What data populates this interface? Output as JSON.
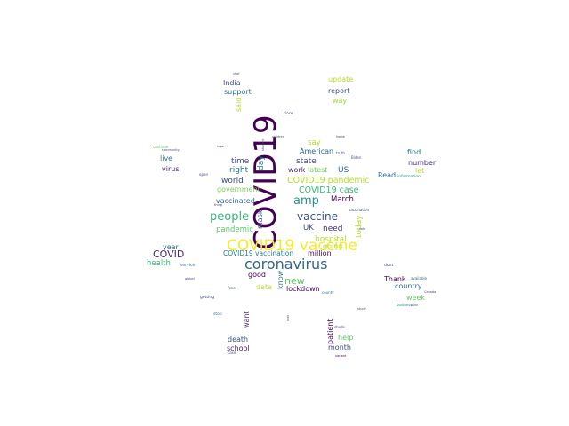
{
  "words": [
    {
      "text": "COVID19",
      "color": "#440154",
      "vertical": true
    },
    {
      "text": "COVID19 vaccine",
      "color": "#fde725",
      "vertical": false
    },
    {
      "text": "coronavirus",
      "color": "#31688e",
      "vertical": false
    },
    {
      "text": "people",
      "color": "#35b779",
      "vertical": false
    },
    {
      "text": "amp",
      "color": "#21918c",
      "vertical": false
    },
    {
      "text": "vaccine",
      "color": "#3b528b",
      "vertical": false
    },
    {
      "text": "new",
      "color": "#5ec962",
      "vertical": false
    },
    {
      "text": "COVID",
      "color": "#482878",
      "vertical": false
    },
    {
      "text": "COVID19 pandemic",
      "color": "#b5de2b",
      "vertical": false
    },
    {
      "text": "COVID19 case",
      "color": "#35b779",
      "vertical": false
    },
    {
      "text": "day",
      "color": "#26828e",
      "vertical": true
    },
    {
      "text": "world",
      "color": "#3e4989",
      "vertical": false
    },
    {
      "text": "time",
      "color": "#404688",
      "vertical": false
    },
    {
      "text": "right",
      "color": "#2a788e",
      "vertical": false
    },
    {
      "text": "state",
      "color": "#414487",
      "vertical": false
    },
    {
      "text": "US",
      "color": "#31688e",
      "vertical": false
    },
    {
      "text": "UK",
      "color": "#3e4989",
      "vertical": false
    },
    {
      "text": "work",
      "color": "#482878",
      "vertical": false
    },
    {
      "text": "latest",
      "color": "#6ece58",
      "vertical": false
    },
    {
      "text": "American",
      "color": "#31688e",
      "vertical": false
    },
    {
      "text": "say",
      "color": "#b5de2b",
      "vertical": false
    },
    {
      "text": "March",
      "color": "#440154",
      "vertical": false
    },
    {
      "text": "need",
      "color": "#472d7b",
      "vertical": false
    },
    {
      "text": "today",
      "color": "#addc30",
      "vertical": true
    },
    {
      "text": "hospital",
      "color": "#b5de2b",
      "vertical": false
    },
    {
      "text": "mask",
      "color": "#3e4989",
      "vertical": true
    },
    {
      "text": "vaccinated",
      "color": "#31688e",
      "vertical": false
    },
    {
      "text": "pandemic",
      "color": "#5ec962",
      "vertical": false
    },
    {
      "text": "government",
      "color": "#7ad151",
      "vertical": false
    },
    {
      "text": "live",
      "color": "#2c728e",
      "vertical": false
    },
    {
      "text": "virus",
      "color": "#482878",
      "vertical": false
    },
    {
      "text": "year",
      "color": "#31688e",
      "vertical": false
    },
    {
      "text": "health",
      "color": "#35b779",
      "vertical": false
    },
    {
      "text": "COVID19 vaccination",
      "color": "#277f8e",
      "vertical": false
    },
    {
      "text": "million",
      "color": "#440154",
      "vertical": false
    },
    {
      "text": "good",
      "color": "#440154",
      "vertical": false
    },
    {
      "text": "data",
      "color": "#b5de2b",
      "vertical": false
    },
    {
      "text": "know",
      "color": "#2a788e",
      "vertical": true
    },
    {
      "text": "lockdown",
      "color": "#440154",
      "vertical": false
    },
    {
      "text": "going",
      "color": "#addc30",
      "vertical": false
    },
    {
      "text": "update",
      "color": "#b5de2b",
      "vertical": false
    },
    {
      "text": "India",
      "color": "#3e4989",
      "vertical": false
    },
    {
      "text": "support",
      "color": "#2c728e",
      "vertical": false
    },
    {
      "text": "said",
      "color": "#b5de2b",
      "vertical": true
    },
    {
      "text": "report",
      "color": "#3b528b",
      "vertical": false
    },
    {
      "text": "way",
      "color": "#a0da39",
      "vertical": false
    },
    {
      "text": "find",
      "color": "#2c728e",
      "vertical": false
    },
    {
      "text": "number",
      "color": "#472d7b",
      "vertical": false
    },
    {
      "text": "let",
      "color": "#b5de2b",
      "vertical": false
    },
    {
      "text": "Read",
      "color": "#31688e",
      "vertical": false
    },
    {
      "text": "Thank",
      "color": "#440154",
      "vertical": false
    },
    {
      "text": "country",
      "color": "#31688e",
      "vertical": false
    },
    {
      "text": "week",
      "color": "#5ec962",
      "vertical": false
    },
    {
      "text": "want",
      "color": "#482878",
      "vertical": true
    },
    {
      "text": "patient",
      "color": "#440154",
      "vertical": true
    },
    {
      "text": "help",
      "color": "#5ec962",
      "vertical": false
    },
    {
      "text": "month",
      "color": "#3e4989",
      "vertical": false
    },
    {
      "text": "death",
      "color": "#3b528b",
      "vertical": false
    },
    {
      "text": "school",
      "color": "#481a6c",
      "vertical": false
    },
    {
      "text": "continue",
      "color": "#5ec962",
      "vertical": false
    },
    {
      "text": "service",
      "color": "#31688e",
      "vertical": false
    },
    {
      "text": "information",
      "color": "#21918c",
      "vertical": false
    },
    {
      "text": "dont",
      "color": "#3e4989",
      "vertical": false
    },
    {
      "text": "getting",
      "color": "#3e4989",
      "vertical": false
    },
    {
      "text": "free",
      "color": "#3b528b",
      "vertical": false
    },
    {
      "text": "stop",
      "color": "#2a788e",
      "vertical": false
    },
    {
      "text": "available",
      "color": "#31688e",
      "vertical": false
    },
    {
      "text": "business",
      "color": "#21918c",
      "vertical": false
    },
    {
      "text": "check",
      "color": "#3e4989",
      "vertical": false
    },
    {
      "text": "county",
      "color": "#2c728e",
      "vertical": false
    },
    {
      "text": "vaccination",
      "color": "#3e4989",
      "vertical": false
    },
    {
      "text": "children",
      "color": "#3e4989",
      "vertical": false
    },
    {
      "text": "close",
      "color": "#3b528b",
      "vertical": false
    },
    {
      "text": "Biden",
      "color": "#3b528b",
      "vertical": false
    },
    {
      "text": "truth",
      "color": "#3e4989",
      "vertical": false
    },
    {
      "text": "home",
      "color": "#3e4989",
      "vertical": false
    },
    {
      "text": "case",
      "color": "#3b528b",
      "vertical": false
    },
    {
      "text": "study",
      "color": "#3e4989",
      "vertical": false
    },
    {
      "text": "April",
      "color": "#3e4989",
      "vertical": false
    },
    {
      "text": "variant",
      "color": "#440154",
      "vertical": false
    },
    {
      "text": "shot",
      "color": "#3e4989",
      "vertical": false
    },
    {
      "text": "hope",
      "color": "#440154",
      "vertical": false
    },
    {
      "text": "open",
      "color": "#3e4989",
      "vertical": false
    },
    {
      "text": "Canada",
      "color": "#3e4989",
      "vertical": false
    },
    {
      "text": "global",
      "color": "#3e4989",
      "vertical": false
    },
    {
      "text": "community",
      "color": "#3e4989",
      "vertical": false
    },
    {
      "text": "look",
      "color": "#3e4989",
      "vertical": true
    },
    {
      "text": "student",
      "color": "#3e4989",
      "vertical": true
    },
    {
      "text": "thing",
      "color": "#3e4989",
      "vertical": false
    },
    {
      "text": "safe",
      "color": "#3e4989",
      "vertical": false
    }
  ]
}
